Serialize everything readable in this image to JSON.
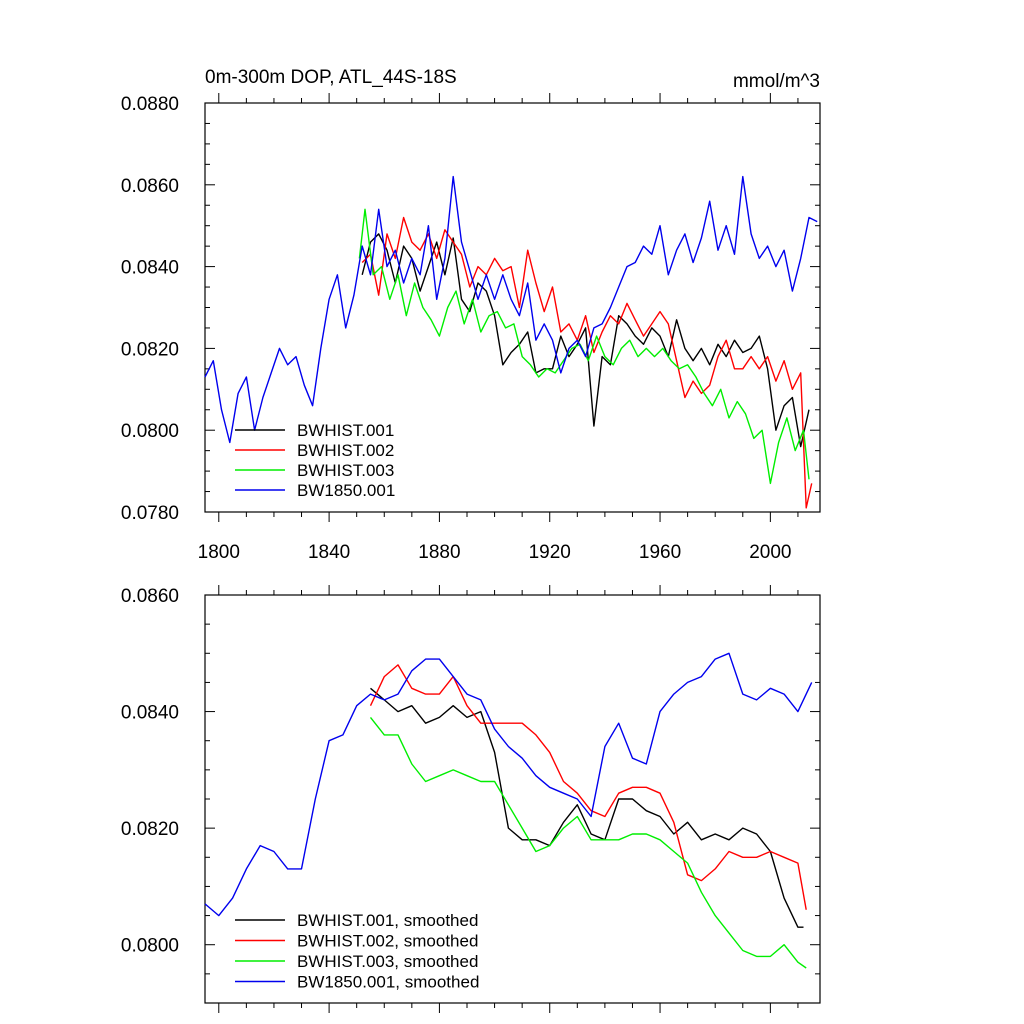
{
  "chart_data": [
    {
      "type": "line",
      "title": "0m-300m DOP, ATL_44S-18S",
      "units": "mmol/m^3",
      "xlim": [
        1795,
        2018
      ],
      "ylim": [
        0.078,
        0.088
      ],
      "x_ticks": [
        1800,
        1840,
        1880,
        1920,
        1960,
        2000
      ],
      "y_ticks": [
        "0.0780",
        "0.0800",
        "0.0820",
        "0.0840",
        "0.0860",
        "0.0880"
      ],
      "y_tick_values": [
        0.078,
        0.08,
        0.082,
        0.084,
        0.086,
        0.088
      ],
      "legend": [
        "BWHIST.001",
        "BWHIST.002",
        "BWHIST.003",
        "BW1850.001"
      ],
      "series": [
        {
          "name": "BWHIST.001",
          "color": "#000000",
          "x": [
            1852,
            1855,
            1858,
            1861,
            1864,
            1867,
            1870,
            1873,
            1876,
            1879,
            1882,
            1885,
            1888,
            1891,
            1894,
            1897,
            1900,
            1903,
            1906,
            1909,
            1912,
            1915,
            1918,
            1921,
            1924,
            1927,
            1930,
            1933,
            1936,
            1939,
            1942,
            1945,
            1948,
            1951,
            1954,
            1957,
            1960,
            1963,
            1966,
            1969,
            1972,
            1975,
            1978,
            1981,
            1984,
            1987,
            1990,
            1993,
            1996,
            1999,
            2002,
            2005,
            2008,
            2011,
            2014
          ],
          "values": [
            0.0838,
            0.0846,
            0.0848,
            0.0844,
            0.0836,
            0.0845,
            0.0842,
            0.0834,
            0.084,
            0.0846,
            0.0838,
            0.0847,
            0.0832,
            0.0829,
            0.0836,
            0.0834,
            0.0828,
            0.0816,
            0.0819,
            0.0821,
            0.0824,
            0.0814,
            0.0815,
            0.0815,
            0.0823,
            0.0818,
            0.0821,
            0.0825,
            0.0801,
            0.0818,
            0.0816,
            0.0828,
            0.0826,
            0.0823,
            0.0821,
            0.0825,
            0.0823,
            0.0818,
            0.0827,
            0.082,
            0.0817,
            0.082,
            0.0816,
            0.0821,
            0.0818,
            0.0822,
            0.0819,
            0.082,
            0.0823,
            0.0815,
            0.08,
            0.0806,
            0.0808,
            0.0796,
            0.0805
          ]
        },
        {
          "name": "BWHIST.002",
          "color": "#ff0000",
          "x": [
            1852,
            1855,
            1858,
            1861,
            1864,
            1867,
            1870,
            1873,
            1876,
            1879,
            1882,
            1885,
            1888,
            1891,
            1894,
            1897,
            1900,
            1903,
            1906,
            1909,
            1912,
            1915,
            1918,
            1921,
            1924,
            1927,
            1930,
            1933,
            1936,
            1939,
            1942,
            1945,
            1948,
            1951,
            1954,
            1957,
            1960,
            1963,
            1966,
            1969,
            1972,
            1975,
            1978,
            1981,
            1984,
            1987,
            1990,
            1993,
            1996,
            1999,
            2002,
            2005,
            2008,
            2011,
            2013,
            2015
          ],
          "values": [
            0.0841,
            0.0843,
            0.0833,
            0.0848,
            0.0842,
            0.0852,
            0.0846,
            0.0844,
            0.0848,
            0.0842,
            0.0849,
            0.0846,
            0.0843,
            0.0835,
            0.084,
            0.0838,
            0.0842,
            0.0839,
            0.084,
            0.083,
            0.0844,
            0.0836,
            0.0829,
            0.0835,
            0.0824,
            0.0826,
            0.0822,
            0.0828,
            0.0819,
            0.0824,
            0.0828,
            0.0826,
            0.0831,
            0.0827,
            0.0823,
            0.0826,
            0.0829,
            0.0826,
            0.0817,
            0.0808,
            0.0812,
            0.0809,
            0.0811,
            0.0818,
            0.0822,
            0.0815,
            0.0815,
            0.0818,
            0.0815,
            0.0818,
            0.0812,
            0.0817,
            0.081,
            0.0814,
            0.0781,
            0.0787
          ]
        },
        {
          "name": "BWHIST.003",
          "color": "#00ee00",
          "x": [
            1851,
            1853,
            1856,
            1859,
            1862,
            1865,
            1868,
            1871,
            1874,
            1877,
            1880,
            1883,
            1886,
            1889,
            1892,
            1895,
            1898,
            1901,
            1904,
            1907,
            1910,
            1913,
            1916,
            1919,
            1922,
            1925,
            1928,
            1931,
            1934,
            1937,
            1940,
            1943,
            1946,
            1949,
            1952,
            1955,
            1958,
            1961,
            1964,
            1967,
            1970,
            1973,
            1976,
            1979,
            1982,
            1985,
            1988,
            1991,
            1994,
            1997,
            2000,
            2003,
            2006,
            2009,
            2012,
            2014
          ],
          "values": [
            0.0842,
            0.0854,
            0.0838,
            0.084,
            0.0832,
            0.0838,
            0.0828,
            0.0836,
            0.083,
            0.0827,
            0.0823,
            0.083,
            0.0834,
            0.0826,
            0.0832,
            0.0824,
            0.0828,
            0.0829,
            0.0825,
            0.0826,
            0.0818,
            0.0816,
            0.0813,
            0.0815,
            0.0814,
            0.0817,
            0.082,
            0.0821,
            0.0817,
            0.0823,
            0.0818,
            0.0816,
            0.082,
            0.0822,
            0.0818,
            0.082,
            0.0818,
            0.082,
            0.0817,
            0.0815,
            0.0816,
            0.0813,
            0.0809,
            0.0806,
            0.081,
            0.0803,
            0.0807,
            0.0804,
            0.0798,
            0.08,
            0.0787,
            0.0797,
            0.0803,
            0.0795,
            0.08,
            0.0788
          ]
        },
        {
          "name": "BW1850.001",
          "color": "#0000ee",
          "x": [
            1795,
            1798,
            1801,
            1804,
            1807,
            1810,
            1813,
            1816,
            1819,
            1822,
            1825,
            1828,
            1831,
            1834,
            1837,
            1840,
            1843,
            1846,
            1849,
            1852,
            1855,
            1858,
            1861,
            1864,
            1867,
            1870,
            1873,
            1876,
            1879,
            1882,
            1885,
            1888,
            1891,
            1894,
            1897,
            1900,
            1903,
            1906,
            1909,
            1912,
            1915,
            1918,
            1921,
            1924,
            1927,
            1930,
            1933,
            1936,
            1939,
            1942,
            1945,
            1948,
            1951,
            1954,
            1957,
            1960,
            1963,
            1966,
            1969,
            1972,
            1975,
            1978,
            1981,
            1984,
            1987,
            1990,
            1993,
            1996,
            1999,
            2002,
            2005,
            2008,
            2011,
            2014,
            2017
          ],
          "values": [
            0.0813,
            0.0817,
            0.0805,
            0.0797,
            0.0809,
            0.0813,
            0.08,
            0.0808,
            0.0814,
            0.082,
            0.0816,
            0.0818,
            0.0811,
            0.0806,
            0.082,
            0.0832,
            0.0838,
            0.0825,
            0.0833,
            0.0845,
            0.0838,
            0.0854,
            0.084,
            0.0844,
            0.0836,
            0.0842,
            0.0838,
            0.085,
            0.0832,
            0.0842,
            0.0862,
            0.0846,
            0.0839,
            0.0832,
            0.0838,
            0.0832,
            0.0838,
            0.0832,
            0.0828,
            0.0836,
            0.0822,
            0.0826,
            0.0822,
            0.0814,
            0.082,
            0.0822,
            0.0818,
            0.0825,
            0.0826,
            0.083,
            0.0835,
            0.084,
            0.0841,
            0.0845,
            0.0843,
            0.085,
            0.0838,
            0.0844,
            0.0848,
            0.0841,
            0.0847,
            0.0856,
            0.0844,
            0.085,
            0.0843,
            0.0862,
            0.0848,
            0.0842,
            0.0845,
            0.084,
            0.0844,
            0.0834,
            0.0842,
            0.0852,
            0.0851
          ]
        }
      ]
    },
    {
      "type": "line",
      "title": "",
      "xlim": [
        1795,
        2018
      ],
      "ylim": [
        0.079,
        0.086
      ],
      "y_ticks": [
        "0.0800",
        "0.0820",
        "0.0840",
        "0.0860"
      ],
      "y_tick_values": [
        0.08,
        0.082,
        0.084,
        0.086
      ],
      "legend": [
        "BWHIST.001, smoothed",
        "BWHIST.002, smoothed",
        "BWHIST.003, smoothed",
        "BW1850.001, smoothed"
      ],
      "series": [
        {
          "name": "BWHIST.001, smoothed",
          "color": "#000000",
          "x": [
            1855,
            1860,
            1865,
            1870,
            1875,
            1880,
            1885,
            1890,
            1895,
            1900,
            1905,
            1910,
            1915,
            1920,
            1925,
            1930,
            1935,
            1940,
            1945,
            1950,
            1955,
            1960,
            1965,
            1970,
            1975,
            1980,
            1985,
            1990,
            1995,
            2000,
            2005,
            2010,
            2012
          ],
          "values": [
            0.0844,
            0.0842,
            0.084,
            0.0841,
            0.0838,
            0.0839,
            0.0841,
            0.0839,
            0.084,
            0.0833,
            0.082,
            0.0818,
            0.0818,
            0.0817,
            0.0821,
            0.0824,
            0.0819,
            0.0818,
            0.0825,
            0.0825,
            0.0823,
            0.0822,
            0.0819,
            0.0821,
            0.0818,
            0.0819,
            0.0818,
            0.082,
            0.0819,
            0.0816,
            0.0808,
            0.0803,
            0.0803
          ]
        },
        {
          "name": "BWHIST.002, smoothed",
          "color": "#ff0000",
          "x": [
            1855,
            1860,
            1865,
            1870,
            1875,
            1880,
            1885,
            1890,
            1895,
            1900,
            1905,
            1910,
            1915,
            1920,
            1925,
            1930,
            1935,
            1940,
            1945,
            1950,
            1955,
            1960,
            1965,
            1970,
            1975,
            1980,
            1985,
            1990,
            1995,
            2000,
            2005,
            2010,
            2013
          ],
          "values": [
            0.0841,
            0.0846,
            0.0848,
            0.0844,
            0.0843,
            0.0843,
            0.0846,
            0.0841,
            0.0838,
            0.0838,
            0.0838,
            0.0838,
            0.0836,
            0.0833,
            0.0828,
            0.0826,
            0.0823,
            0.0822,
            0.0826,
            0.0827,
            0.0827,
            0.0826,
            0.0821,
            0.0812,
            0.0811,
            0.0813,
            0.0816,
            0.0815,
            0.0815,
            0.0816,
            0.0815,
            0.0814,
            0.0806
          ]
        },
        {
          "name": "BWHIST.003, smoothed",
          "color": "#00ee00",
          "x": [
            1855,
            1860,
            1865,
            1870,
            1875,
            1880,
            1885,
            1890,
            1895,
            1900,
            1905,
            1910,
            1915,
            1920,
            1925,
            1930,
            1935,
            1940,
            1945,
            1950,
            1955,
            1960,
            1965,
            1970,
            1975,
            1980,
            1985,
            1990,
            1995,
            2000,
            2005,
            2010,
            2013
          ],
          "values": [
            0.0839,
            0.0836,
            0.0836,
            0.0831,
            0.0828,
            0.0829,
            0.083,
            0.0829,
            0.0828,
            0.0828,
            0.0824,
            0.082,
            0.0816,
            0.0817,
            0.082,
            0.0822,
            0.0818,
            0.0818,
            0.0818,
            0.0819,
            0.0819,
            0.0818,
            0.0816,
            0.0814,
            0.0809,
            0.0805,
            0.0802,
            0.0799,
            0.0798,
            0.0798,
            0.08,
            0.0797,
            0.0796
          ]
        },
        {
          "name": "BW1850.001, smoothed",
          "color": "#0000ee",
          "x": [
            1795,
            1800,
            1805,
            1810,
            1815,
            1820,
            1825,
            1830,
            1835,
            1840,
            1845,
            1850,
            1855,
            1860,
            1865,
            1870,
            1875,
            1880,
            1885,
            1890,
            1895,
            1900,
            1905,
            1910,
            1915,
            1920,
            1925,
            1930,
            1935,
            1940,
            1945,
            1950,
            1955,
            1960,
            1965,
            1970,
            1975,
            1980,
            1985,
            1990,
            1995,
            2000,
            2005,
            2010,
            2015
          ],
          "values": [
            0.0807,
            0.0805,
            0.0808,
            0.0813,
            0.0817,
            0.0816,
            0.0813,
            0.0813,
            0.0825,
            0.0835,
            0.0836,
            0.0841,
            0.0843,
            0.0842,
            0.0843,
            0.0847,
            0.0849,
            0.0849,
            0.0846,
            0.0843,
            0.0842,
            0.0837,
            0.0834,
            0.0832,
            0.0829,
            0.0827,
            0.0826,
            0.0825,
            0.0822,
            0.0834,
            0.0838,
            0.0832,
            0.0831,
            0.084,
            0.0843,
            0.0845,
            0.0846,
            0.0849,
            0.085,
            0.0843,
            0.0842,
            0.0844,
            0.0843,
            0.084,
            0.0845
          ]
        }
      ]
    }
  ]
}
